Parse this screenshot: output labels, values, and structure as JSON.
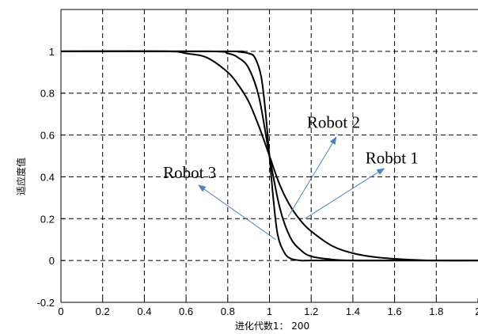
{
  "chart_data": {
    "type": "line",
    "xlabel": "进化代数1： 200",
    "ylabel": "适应度值",
    "xlim": [
      0,
      2
    ],
    "ylim": [
      -0.2,
      1.2
    ],
    "x_ticks": [
      "0",
      "0.2",
      "0.4",
      "0.6",
      "0.8",
      "1",
      "1.2",
      "1.4",
      "1.6",
      "1.8",
      "2"
    ],
    "y_ticks": [
      "-0.2",
      "0",
      "0.2",
      "0.4",
      "0.6",
      "0.8",
      "1"
    ],
    "grid": true,
    "line_color": "#000000",
    "arrow_color": "#4f81bd",
    "series": [
      {
        "name": "Robot 1",
        "x": [
          0,
          0.5,
          0.6,
          0.7,
          0.8,
          0.85,
          0.9,
          0.95,
          1.0,
          1.05,
          1.1,
          1.15,
          1.2,
          1.3,
          1.4,
          1.5,
          1.6,
          1.7,
          1.8,
          2.0
        ],
        "y": [
          1.0,
          1.0,
          0.99,
          0.97,
          0.9,
          0.84,
          0.76,
          0.64,
          0.5,
          0.36,
          0.26,
          0.19,
          0.14,
          0.07,
          0.035,
          0.017,
          0.008,
          0.003,
          0.0,
          0.0
        ]
      },
      {
        "name": "Robot 2",
        "x": [
          0,
          0.7,
          0.8,
          0.85,
          0.9,
          0.95,
          1.0,
          1.05,
          1.1,
          1.15,
          1.2,
          1.3,
          1.4,
          1.6,
          2.0
        ],
        "y": [
          1.0,
          1.0,
          0.99,
          0.97,
          0.92,
          0.78,
          0.5,
          0.25,
          0.11,
          0.05,
          0.02,
          0.005,
          0.0,
          0.0,
          0.0
        ]
      },
      {
        "name": "Robot 3",
        "x": [
          0,
          0.8,
          0.85,
          0.9,
          0.93,
          0.96,
          0.98,
          1.0,
          1.02,
          1.04,
          1.07,
          1.1,
          1.15,
          1.2,
          1.4,
          2.0
        ],
        "y": [
          1.0,
          1.0,
          0.998,
          0.99,
          0.97,
          0.88,
          0.72,
          0.5,
          0.28,
          0.12,
          0.04,
          0.01,
          0.0,
          0.0,
          0.0,
          0.0
        ]
      }
    ],
    "annotations": [
      {
        "text": "Robot 2",
        "x": 1.18,
        "y": 0.635,
        "target": [
          1.32,
          0.59
        ],
        "from": [
          1.09,
          0.21
        ]
      },
      {
        "text": "Robot 1",
        "x": 1.46,
        "y": 0.465,
        "target": [
          1.55,
          0.44
        ],
        "from": [
          1.17,
          0.2
        ]
      },
      {
        "text": "Robot 3",
        "x": 0.49,
        "y": 0.395,
        "target": [
          0.66,
          0.36
        ],
        "from": [
          1.03,
          0.1
        ]
      }
    ]
  }
}
